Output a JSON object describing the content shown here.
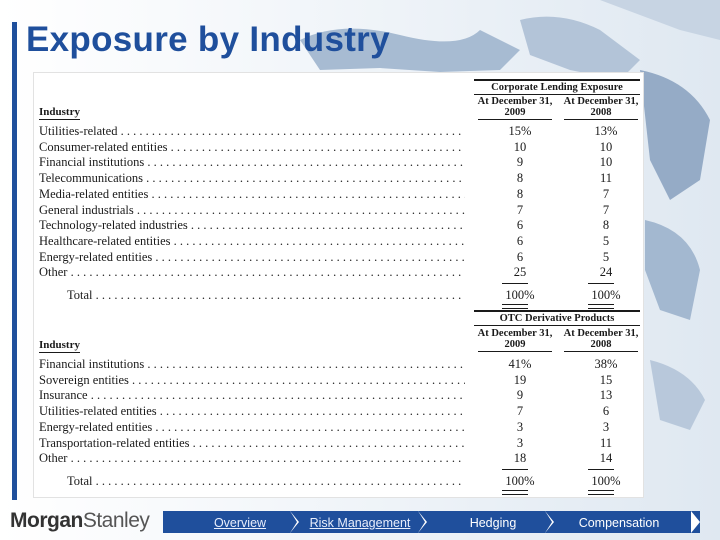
{
  "title": "Exposure by Industry",
  "corporate": {
    "group_title": "Corporate Lending Exposure",
    "industry_header": "Industry",
    "col1": [
      "At December 31,",
      "2009"
    ],
    "col2": [
      "At December 31,",
      "2008"
    ],
    "rows": [
      {
        "label": "Utilities-related",
        "v2009": "15%",
        "v2008": "13%"
      },
      {
        "label": "Consumer-related entities",
        "v2009": "10",
        "v2008": "10"
      },
      {
        "label": "Financial institutions",
        "v2009": "9",
        "v2008": "10"
      },
      {
        "label": "Telecommunications",
        "v2009": "8",
        "v2008": "11"
      },
      {
        "label": "Media-related entities",
        "v2009": "8",
        "v2008": "7"
      },
      {
        "label": "General industrials",
        "v2009": "7",
        "v2008": "7"
      },
      {
        "label": "Technology-related industries",
        "v2009": "6",
        "v2008": "8"
      },
      {
        "label": "Healthcare-related entities",
        "v2009": "6",
        "v2008": "5"
      },
      {
        "label": "Energy-related entities",
        "v2009": "6",
        "v2008": "5"
      },
      {
        "label": "Other",
        "v2009": "25",
        "v2008": "24"
      }
    ],
    "total": {
      "label": "Total",
      "v2009": "100%",
      "v2008": "100%"
    }
  },
  "otc": {
    "group_title": "OTC Derivative Products",
    "industry_header": "Industry",
    "col1": [
      "At December 31,",
      "2009"
    ],
    "col2": [
      "At December 31,",
      "2008"
    ],
    "rows": [
      {
        "label": "Financial institutions",
        "v2009": "41%",
        "v2008": "38%"
      },
      {
        "label": "Sovereign entities",
        "v2009": "19",
        "v2008": "15"
      },
      {
        "label": "Insurance",
        "v2009": "9",
        "v2008": "13"
      },
      {
        "label": "Utilities-related entities",
        "v2009": "7",
        "v2008": "6"
      },
      {
        "label": "Energy-related entities",
        "v2009": "3",
        "v2008": "3"
      },
      {
        "label": "Transportation-related entities",
        "v2009": "3",
        "v2008": "11"
      },
      {
        "label": "Other",
        "v2009": "18",
        "v2008": "14"
      }
    ],
    "total": {
      "label": "Total",
      "v2009": "100%",
      "v2008": "100%"
    }
  },
  "footer": {
    "logo_part1": "Morgan",
    "logo_part2": "Stanley",
    "nav": [
      "Overview",
      "Risk Management",
      "Hedging",
      "Compensation"
    ]
  },
  "colors": {
    "accent": "#1f4f9c",
    "map": "#9fb4cc"
  }
}
